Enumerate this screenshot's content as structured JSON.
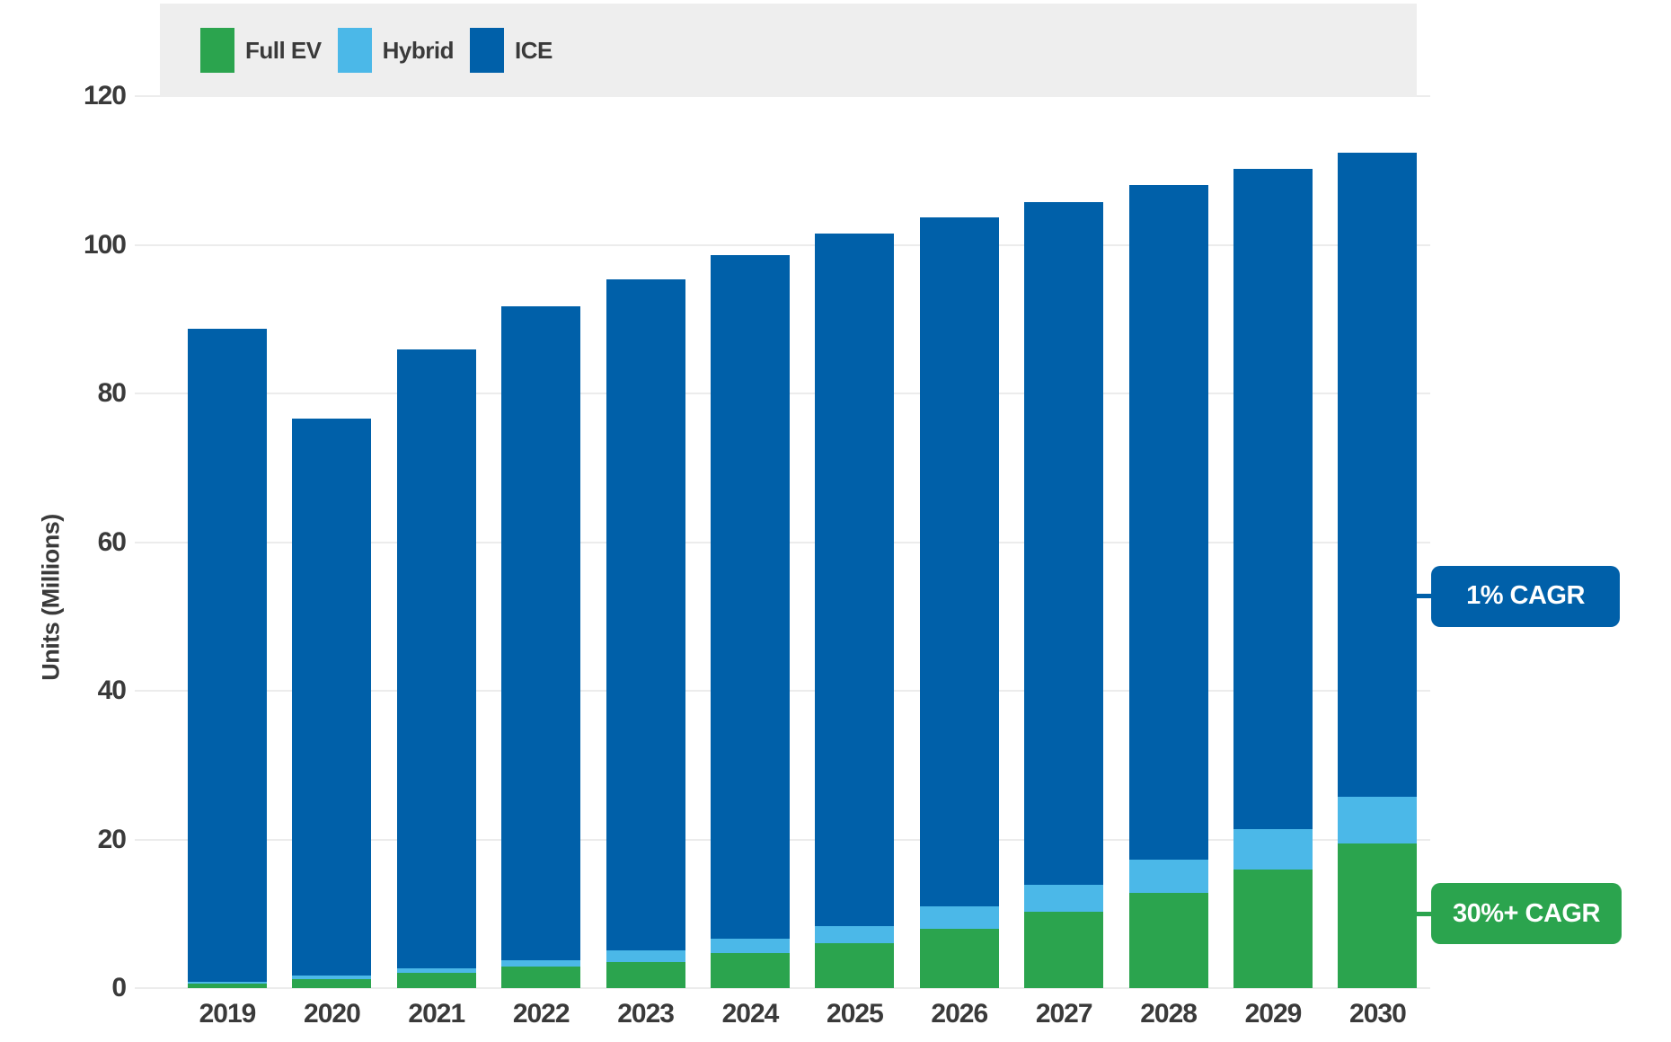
{
  "chart_data": {
    "type": "bar",
    "stacked": true,
    "title": "",
    "xlabel": "",
    "ylabel": "Units (Millions)",
    "categories": [
      "2019",
      "2020",
      "2021",
      "2022",
      "2023",
      "2024",
      "2025",
      "2026",
      "2027",
      "2028",
      "2029",
      "2030"
    ],
    "series": [
      {
        "name": "Full EV",
        "color": "#2BA44E",
        "values": [
          0.6,
          1.2,
          2.0,
          2.9,
          3.5,
          4.7,
          6.0,
          8.0,
          10.3,
          12.8,
          16.0,
          19.5
        ]
      },
      {
        "name": "Hybrid",
        "color": "#4BB8E8",
        "values": [
          0.3,
          0.5,
          0.7,
          0.9,
          1.6,
          2.0,
          2.3,
          3.0,
          3.6,
          4.5,
          5.4,
          6.2
        ]
      },
      {
        "name": "ICE",
        "color": "#0060A9",
        "values": [
          87.8,
          74.9,
          83.2,
          87.9,
          90.3,
          91.9,
          93.2,
          92.7,
          91.8,
          90.7,
          88.8,
          86.7
        ]
      }
    ],
    "totals": [
      88.7,
      76.6,
      85.9,
      91.7,
      95.4,
      98.6,
      101.5,
      103.7,
      105.7,
      108.0,
      110.2,
      112.4
    ],
    "yticks": [
      0,
      20,
      40,
      60,
      80,
      100,
      120
    ],
    "ylim": [
      0,
      120
    ],
    "grid": true,
    "legend_position": "top"
  },
  "annotations": [
    {
      "label": "1% CAGR",
      "color": "#0060A9",
      "points_to_series": "ICE",
      "points_to_category": "2030",
      "at_value": 52.7
    },
    {
      "label": "30%+ CAGR",
      "color": "#2BA44E",
      "points_to_series": "Full EV",
      "points_to_category": "2030",
      "at_value": 10.0
    }
  ],
  "colors": {
    "background": "#ffffff",
    "legend_band": "#eeeeee",
    "gridline": "#ececec",
    "text": "#3a3a3a",
    "full_ev": "#2BA44E",
    "hybrid": "#4BB8E8",
    "ice": "#0060A9"
  }
}
